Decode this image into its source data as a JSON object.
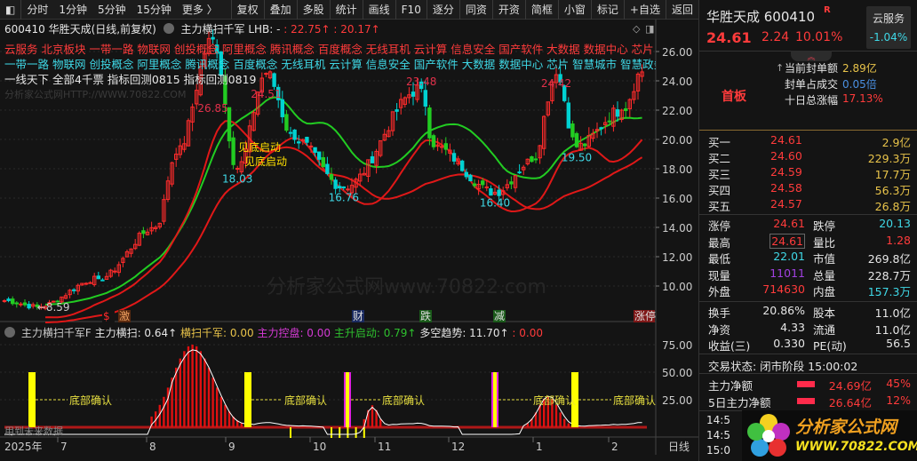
{
  "toolbar": {
    "left": [
      "分时",
      "1分钟",
      "5分钟",
      "15分钟",
      "更多 〉"
    ],
    "right": [
      "复权",
      "叠加",
      "多股",
      "统计",
      "画线",
      "F10",
      "逐分",
      "同资",
      "开资",
      "简框",
      "小窗",
      "标记",
      "+自选",
      "返回"
    ]
  },
  "chart_header": {
    "title": "600410 华胜天成(日线,前复权)",
    "indicator": "主力横扫千军",
    "lhb": "LHB: -",
    "v1": ": 22.75↑",
    "v2": ": 20.17↑"
  },
  "concepts_red": "云服务 北京板块 一带一路 物联网 创投概念 阿里概念 腾讯概念 百度概念 无线耳机 云计算 信息安全 国产软件 大数据 数据中心 芯片 智慧",
  "concepts_cyan": "一带一路 物联网 创投概念 阿里概念 腾讯概念 百度概念 无线耳机 云计算 信息安全 国产软件 大数据 数据中心 芯片 智慧城市 智慧政务 跨",
  "info_line": "一线天下 全部4千票 指标回测0815 指标回测0819",
  "watermark_top": "分析家公式网HTTP://WWW.70822.COM",
  "watermark_mid": "分析家公式网www.70822.com",
  "chart_data": {
    "type": "candlestick",
    "price_axis": [
      "26.00",
      "24.00",
      "22.00",
      "20.00",
      "18.00",
      "16.00",
      "14.00",
      "12.00",
      "10.00"
    ],
    "ylim": [
      8,
      27
    ],
    "date_axis": [
      "2025年",
      "7",
      "8",
      "9",
      "10",
      "11",
      "12",
      "1",
      "2",
      "日线"
    ],
    "key_points": [
      {
        "label": "",
        "price": 9.0
      },
      {
        "label": "←8.59",
        "price": 8.59
      },
      {
        "label": "",
        "price": 10.5
      },
      {
        "label": "",
        "price": 14.0
      },
      {
        "label": "",
        "price": 19.0
      },
      {
        "label": "26.85",
        "price": 26.85
      },
      {
        "label": "18.03",
        "price": 18.03
      },
      {
        "label": "24.51",
        "price": 24.51
      },
      {
        "label": "",
        "price": 20.0
      },
      {
        "label": "16.76",
        "price": 16.76
      },
      {
        "label": "23.48",
        "price": 23.48
      },
      {
        "label": "",
        "price": 19.5
      },
      {
        "label": "16.40",
        "price": 16.4
      },
      {
        "label": "",
        "price": 18.5
      },
      {
        "label": "24.42",
        "price": 24.42
      },
      {
        "label": "19.50",
        "price": 19.5
      },
      {
        "label": "",
        "price": 22.0
      },
      {
        "label": "",
        "price": 24.61
      }
    ],
    "annotation": "见底启动",
    "annotation2": "见底启动",
    "signals": [
      "$",
      "激",
      "财",
      "跌",
      "减",
      "涨停"
    ]
  },
  "sub": {
    "title": "主力横扫千军F",
    "a": "主力横扫: 0.64↑",
    "b": "横扫千军: 0.00",
    "c": "主力控盘: 0.00",
    "d": "主升启动: 0.79↑",
    "e": "多空趋势: 11.70↑",
    "f": ": 0.00",
    "axis": [
      "75.00",
      "50.00",
      "25.00"
    ],
    "ylim": [
      0,
      80
    ],
    "confirm": "底部确认",
    "future": "用到未来数据"
  },
  "quote": {
    "name": "华胜天成 600410",
    "badge": "R",
    "price": "24.61",
    "change": "2.24",
    "pct": "10.01%",
    "sector": "云服务",
    "sector_pct": "-1.04%",
    "seal_amt_label": "当前封单额",
    "seal_amt": "2.89亿",
    "seal_ratio_label": "封单占成交",
    "seal_ratio": "0.05倍",
    "ten_day_label": "十日总涨幅",
    "ten_day": "17.13%",
    "board": "首板"
  },
  "book": [
    {
      "l": "买一",
      "p": "24.61",
      "v": "2.9亿"
    },
    {
      "l": "买二",
      "p": "24.60",
      "v": "229.3万"
    },
    {
      "l": "买三",
      "p": "24.59",
      "v": "17.7万"
    },
    {
      "l": "买四",
      "p": "24.58",
      "v": "56.3万"
    },
    {
      "l": "买五",
      "p": "24.57",
      "v": "26.8万"
    }
  ],
  "stats": [
    {
      "l1": "涨停",
      "v1": "24.61",
      "l2": "跌停",
      "v2": "20.13"
    },
    {
      "l1": "最高",
      "v1": "24.61",
      "l2": "量比",
      "v2": "1.28"
    },
    {
      "l1": "最低",
      "v1": "22.01",
      "l2": "市值",
      "v2": "269.8亿"
    },
    {
      "l1": "现量",
      "v1": "11011",
      "l2": "总量",
      "v2": "228.7万"
    },
    {
      "l1": "外盘",
      "v1": "714630",
      "l2": "内盘",
      "v2": "157.3万"
    }
  ],
  "stats2": [
    {
      "l1": "换手",
      "v1": "20.86%",
      "l2": "股本",
      "v2": "11.0亿"
    },
    {
      "l1": "净资",
      "v1": "4.33",
      "l2": "流通",
      "v2": "11.0亿"
    },
    {
      "l1": "收益(三)",
      "v1": "0.330",
      "l2": "PE(动)",
      "v2": "56.5"
    }
  ],
  "status": "交易状态: 闭市阶段 15:00:02",
  "flow": [
    {
      "l": "主力净额",
      "v": "24.69亿",
      "p": "45%"
    },
    {
      "l": "5日主力净额",
      "v": "26.64亿",
      "p": "12%"
    }
  ],
  "ticks": [
    "14:5",
    "14:5",
    "15:0"
  ],
  "logo": {
    "cn": "分析家公式网",
    "url": "WWW.70822.COM"
  },
  "colors": {
    "up": "#ff2b2b",
    "down": "#00d2d2",
    "ma": "#22cc22",
    "band": "#e01818",
    "yellow": "#ffff00",
    "magenta": "#e020e0"
  }
}
